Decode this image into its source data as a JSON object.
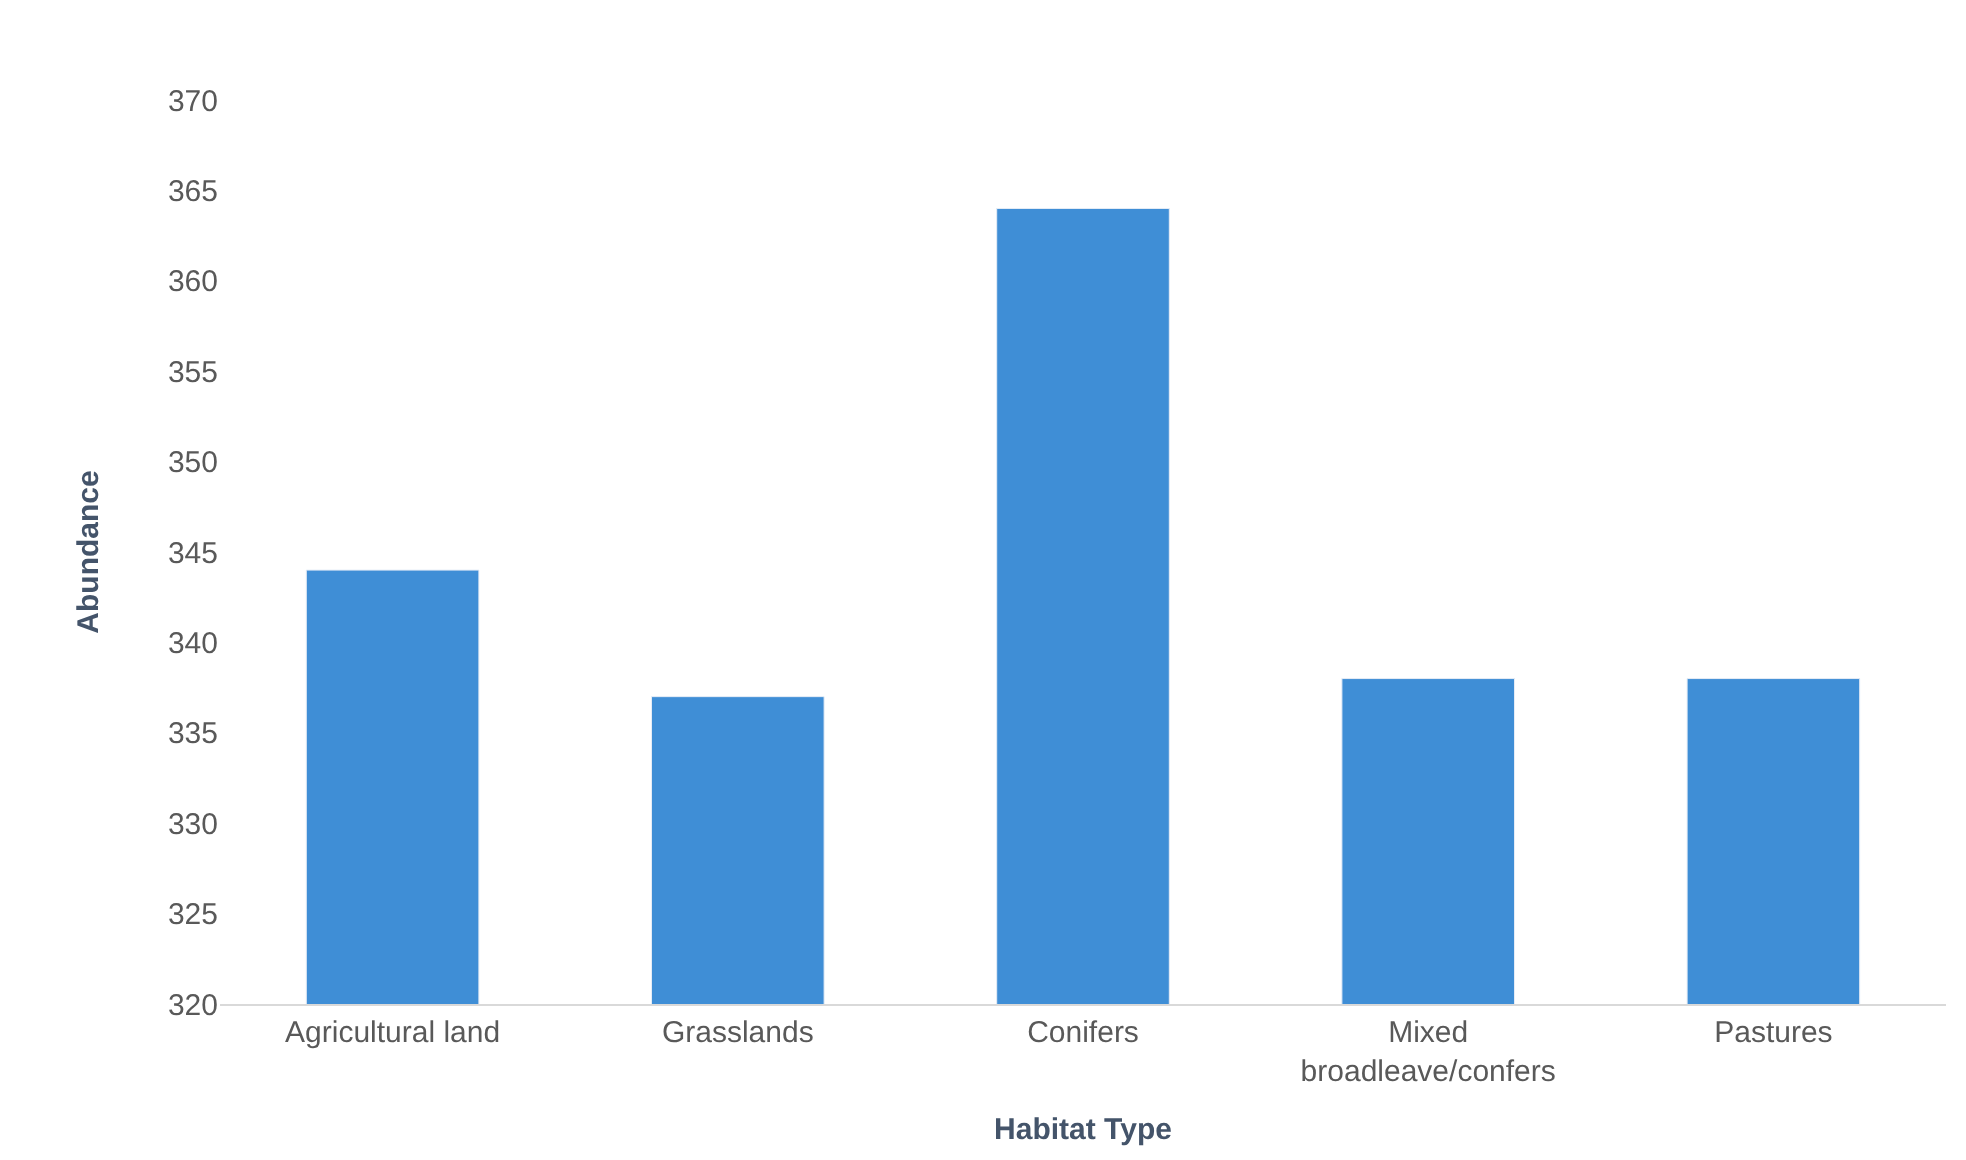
{
  "chart_data": {
    "type": "bar",
    "xlabel": "Habitat Type",
    "ylabel": "Abundance",
    "categories": [
      "Agricultural land",
      "Grasslands",
      "Conifers",
      "Mixed broadleave/confers",
      "Pastures"
    ],
    "values": [
      344,
      337,
      364,
      338,
      338
    ],
    "color": "#3f8ed6",
    "ylim": [
      320,
      370
    ],
    "yticks": [
      320,
      325,
      330,
      335,
      340,
      345,
      350,
      355,
      360,
      365,
      370
    ],
    "grid": false
  }
}
